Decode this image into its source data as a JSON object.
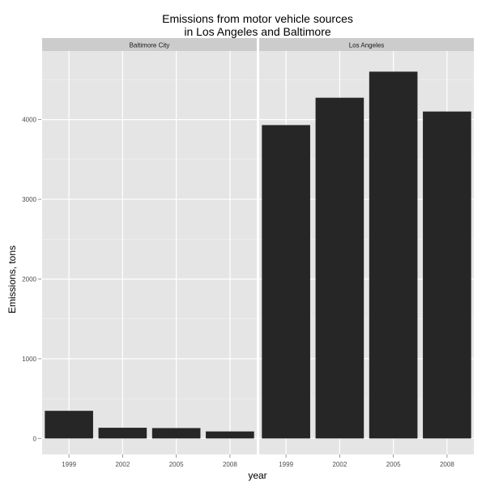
{
  "chart_data": {
    "type": "bar",
    "title_line1": "Emissions from motor vehicle sources",
    "title_line2": "in Los Angeles and Baltimore",
    "xlabel": "year",
    "ylabel": "Emissions, tons",
    "ylim": [
      -200,
      4860
    ],
    "yticks": [
      0,
      1000,
      2000,
      3000,
      4000
    ],
    "yminor": [
      500,
      1500,
      2500,
      3500,
      4500
    ],
    "categories": [
      "1999",
      "2002",
      "2005",
      "2008"
    ],
    "grid": true,
    "panels": [
      {
        "name": "Baltimore City",
        "values": [
          346.82,
          134.31,
          130.43,
          88.28
        ]
      },
      {
        "name": "Los Angeles",
        "values": [
          3931.12,
          4274.03,
          4601.41,
          4101.32
        ]
      }
    ],
    "colors": {
      "bar": "#262626",
      "panel_bg": "#e5e5e5",
      "strip_bg": "#cccccc",
      "grid": "#ffffff",
      "text": "#000000",
      "tick_text": "#4d4d4d"
    }
  }
}
